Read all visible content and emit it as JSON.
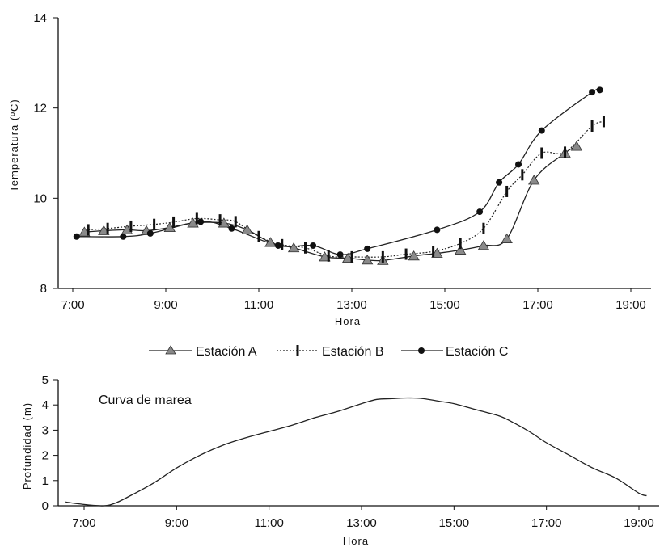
{
  "chart_data": [
    {
      "type": "line",
      "title": "",
      "xlabel": "Hora",
      "ylabel": "Temperatura (ºC)",
      "xlim": [
        "7:00",
        "19:00"
      ],
      "ylim": [
        8,
        14
      ],
      "xticks": [
        "7:00",
        "9:00",
        "11:00",
        "13:00",
        "15:00",
        "17:00",
        "19:00"
      ],
      "yticks": [
        "8",
        "10",
        "12",
        "14"
      ],
      "legend": "bottom",
      "grid": false,
      "series": [
        {
          "name": "Estación A",
          "marker": "triangle",
          "line_style": "solid",
          "color": "#222222",
          "x": [
            "7:15",
            "7:40",
            "8:10",
            "8:35",
            "9:05",
            "9:35",
            "10:15",
            "10:45",
            "11:15",
            "11:45",
            "12:25",
            "12:55",
            "13:20",
            "13:40",
            "14:20",
            "14:50",
            "15:20",
            "15:50",
            "16:20",
            "16:55",
            "17:35",
            "17:50"
          ],
          "y": [
            9.25,
            9.28,
            9.3,
            9.28,
            9.35,
            9.45,
            9.45,
            9.3,
            9.02,
            8.9,
            8.7,
            8.67,
            8.63,
            8.62,
            8.72,
            8.78,
            8.85,
            8.95,
            9.1,
            10.4,
            11.0,
            11.15
          ]
        },
        {
          "name": "Estación B",
          "marker": "vertical-bar",
          "line_style": "dotted",
          "color": "#222222",
          "x": [
            "7:20",
            "7:45",
            "8:15",
            "8:45",
            "9:10",
            "9:40",
            "10:10",
            "10:30",
            "11:00",
            "11:30",
            "12:00",
            "12:30",
            "13:00",
            "13:40",
            "14:10",
            "14:45",
            "15:20",
            "15:50",
            "16:20",
            "16:40",
            "17:05",
            "17:35",
            "18:10",
            "18:25"
          ],
          "y": [
            9.3,
            9.33,
            9.38,
            9.42,
            9.47,
            9.55,
            9.52,
            9.48,
            9.15,
            8.97,
            8.9,
            8.72,
            8.7,
            8.7,
            8.76,
            8.82,
            9.0,
            9.33,
            10.15,
            10.52,
            11.0,
            11.02,
            11.6,
            11.7
          ]
        },
        {
          "name": "Estación C",
          "marker": "circle",
          "line_style": "solid",
          "color": "#222222",
          "x": [
            "7:05",
            "8:05",
            "8:40",
            "9:45",
            "10:25",
            "11:25",
            "12:10",
            "12:45",
            "13:20",
            "14:50",
            "15:45",
            "16:10",
            "16:35",
            "17:05",
            "18:10",
            "18:20"
          ],
          "y": [
            9.15,
            9.15,
            9.22,
            9.48,
            9.33,
            8.95,
            8.95,
            8.75,
            8.88,
            9.3,
            9.7,
            10.35,
            10.75,
            11.5,
            12.35,
            12.4
          ]
        }
      ]
    },
    {
      "type": "area",
      "annotation": "Curva de marea",
      "xlabel": "Hora",
      "ylabel": "Profundidad (m)",
      "xlim": [
        "6:30",
        "19:30"
      ],
      "ylim": [
        0,
        5
      ],
      "xticks": [
        "7:00",
        "9:00",
        "11:00",
        "13:00",
        "15:00",
        "17:00",
        "19:00"
      ],
      "yticks": [
        "0",
        "1",
        "2",
        "3",
        "4",
        "5"
      ],
      "legend": "none",
      "grid": false,
      "series": [
        {
          "color": "#222222",
          "x": [
            "6:35",
            "7:00",
            "7:25",
            "7:40",
            "8:00",
            "8:30",
            "9:00",
            "9:30",
            "10:00",
            "10:30",
            "11:00",
            "11:30",
            "12:00",
            "12:30",
            "13:00",
            "13:20",
            "13:40",
            "14:00",
            "14:20",
            "14:40",
            "15:00",
            "15:30",
            "16:00",
            "16:20",
            "16:40",
            "17:00",
            "17:30",
            "18:00",
            "18:30",
            "19:00",
            "19:10"
          ],
          "y": [
            0.15,
            0.05,
            0.0,
            0.1,
            0.4,
            0.9,
            1.5,
            2.0,
            2.4,
            2.7,
            2.95,
            3.2,
            3.5,
            3.75,
            4.05,
            4.22,
            4.25,
            4.28,
            4.25,
            4.15,
            4.05,
            3.8,
            3.55,
            3.25,
            2.9,
            2.5,
            2.0,
            1.5,
            1.1,
            0.5,
            0.4
          ]
        }
      ]
    }
  ]
}
